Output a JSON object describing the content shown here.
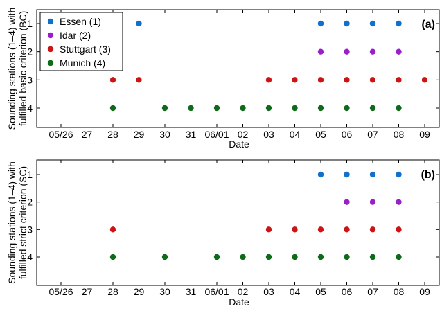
{
  "colors": {
    "essen": "#1170c9",
    "idar": "#9b1fc9",
    "stuttgart": "#cc1414",
    "munich": "#0d6b1a"
  },
  "chart_data": [
    {
      "type": "scatter",
      "panel_label": "(a)",
      "ylabel_line1": "Sounding stations (1–4) with",
      "ylabel_line2": "fulfilled basic criterion (BC)",
      "xlabel": "Date",
      "x_ticks": [
        "05/26",
        "27",
        "28",
        "29",
        "30",
        "31",
        "06/01",
        "02",
        "03",
        "04",
        "05",
        "06",
        "07",
        "08",
        "09"
      ],
      "y_ticks": [
        "1",
        "2",
        "3",
        "4"
      ],
      "ylim": [
        0.5,
        5.1
      ],
      "y_inverted": true,
      "legend_position": "top-left",
      "series": [
        {
          "name": "Essen (1)",
          "color_key": "essen",
          "y": 1,
          "x": [
            "29",
            "05",
            "06",
            "07",
            "08"
          ]
        },
        {
          "name": "Idar (2)",
          "color_key": "idar",
          "y": 2,
          "x": [
            "05",
            "06",
            "07",
            "08"
          ]
        },
        {
          "name": "Stuttgart (3)",
          "color_key": "stuttgart",
          "y": 3,
          "x": [
            "28",
            "29",
            "03",
            "04",
            "05",
            "06",
            "07",
            "08",
            "09"
          ]
        },
        {
          "name": "Munich (4)",
          "color_key": "munich",
          "y": 4,
          "x": [
            "28",
            "30",
            "31",
            "06/01",
            "02",
            "03",
            "04",
            "05",
            "06",
            "07",
            "08"
          ]
        }
      ]
    },
    {
      "type": "scatter",
      "panel_label": "(b)",
      "ylabel_line1": "Sounding stations (1–4) with",
      "ylabel_line2": "fulfilled strict criterion (SC)",
      "xlabel": "Date",
      "x_ticks": [
        "05/26",
        "27",
        "28",
        "29",
        "30",
        "31",
        "06/01",
        "02",
        "03",
        "04",
        "05",
        "06",
        "07",
        "08",
        "09"
      ],
      "y_ticks": [
        "1",
        "2",
        "3",
        "4"
      ],
      "ylim": [
        0.5,
        5.1
      ],
      "y_inverted": true,
      "series": [
        {
          "color_key": "essen",
          "y": 1,
          "x": [
            "05",
            "06",
            "07",
            "08"
          ]
        },
        {
          "color_key": "idar",
          "y": 2,
          "x": [
            "06",
            "07",
            "08"
          ]
        },
        {
          "color_key": "stuttgart",
          "y": 3,
          "x": [
            "28",
            "03",
            "04",
            "05",
            "06",
            "07",
            "08"
          ]
        },
        {
          "color_key": "munich",
          "y": 4,
          "x": [
            "28",
            "30",
            "06/01",
            "02",
            "03",
            "04",
            "05",
            "06",
            "07",
            "08"
          ]
        }
      ]
    }
  ]
}
